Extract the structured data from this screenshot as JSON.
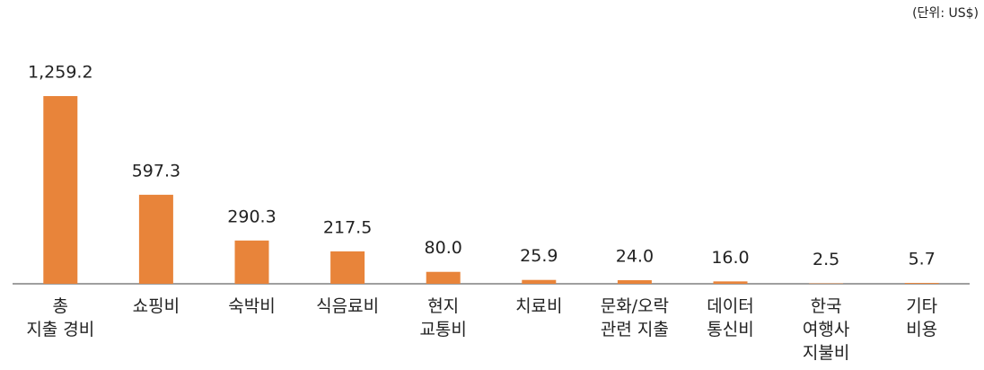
{
  "chart_data": {
    "type": "bar",
    "unit_label": "(단위: US$)",
    "categories": [
      "총\n지출 경비",
      "쇼핑비",
      "숙박비",
      "식음료비",
      "현지\n교통비",
      "치료비",
      "문화/오락\n관련 지출",
      "데이터\n통신비",
      "한국\n여행사\n지불비",
      "기타\n비용"
    ],
    "values": [
      1259.2,
      597.3,
      290.3,
      217.5,
      80.0,
      25.9,
      24.0,
      16.0,
      2.5,
      5.7
    ],
    "value_labels": [
      "1,259.2",
      "597.3",
      "290.3",
      "217.5",
      "80.0",
      "25.9",
      "24.0",
      "16.0",
      "2.5",
      "5.7"
    ],
    "color": "#e8843a"
  }
}
